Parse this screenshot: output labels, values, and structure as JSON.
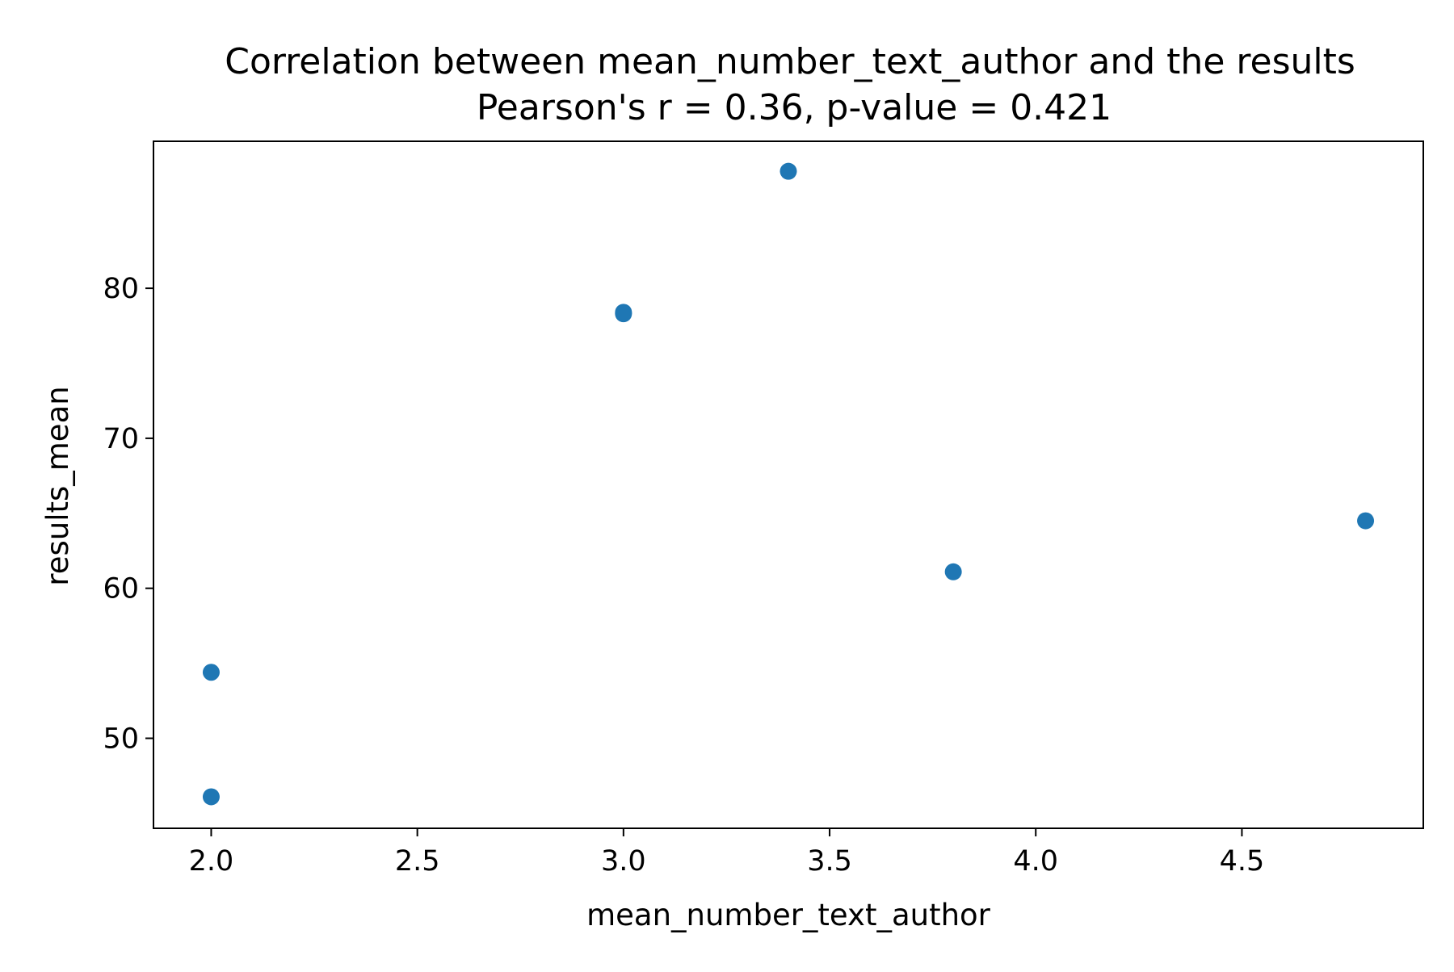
{
  "chart_data": {
    "type": "scatter",
    "title": "Correlation between mean_number_text_author and the results",
    "subtitle": "Pearson's r = 0.36, p-value = 0.421",
    "xlabel": "mean_number_text_author",
    "ylabel": "results_mean",
    "xlim": [
      1.86,
      4.94
    ],
    "ylim": [
      44.0,
      89.8
    ],
    "x_ticks": [
      2.0,
      2.5,
      3.0,
      3.5,
      4.0,
      4.5
    ],
    "x_tick_labels": [
      "2.0",
      "2.5",
      "3.0",
      "3.5",
      "4.0",
      "4.5"
    ],
    "y_ticks": [
      50,
      60,
      70,
      80
    ],
    "y_tick_labels": [
      "50",
      "60",
      "70",
      "80"
    ],
    "grid": false,
    "legend": "none",
    "marker_color": "#1f77b4",
    "points": [
      {
        "x": 2.0,
        "y": 54.4
      },
      {
        "x": 2.0,
        "y": 46.1
      },
      {
        "x": 3.0,
        "y": 78.4
      },
      {
        "x": 3.0,
        "y": 78.3
      },
      {
        "x": 3.4,
        "y": 87.8
      },
      {
        "x": 3.8,
        "y": 61.1
      },
      {
        "x": 4.8,
        "y": 64.5
      }
    ]
  }
}
